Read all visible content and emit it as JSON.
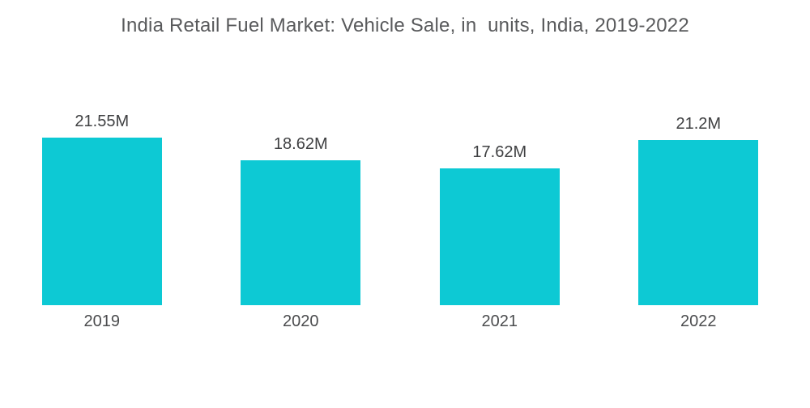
{
  "page": {
    "background_color": "#ffffff"
  },
  "chart_data": {
    "type": "bar",
    "title": "India Retail Fuel Market: Vehicle Sale, in  units, India, 2019-2022",
    "categories": [
      "2019",
      "2020",
      "2021",
      "2022"
    ],
    "values": [
      21.55,
      18.62,
      17.62,
      21.2
    ],
    "value_labels": [
      "21.55M",
      "18.62M",
      "17.62M",
      "21.2M"
    ],
    "unit": "M units",
    "xlabel": "",
    "ylabel": "",
    "ylim": [
      0,
      21.55
    ],
    "grid": false,
    "legend_position": "none",
    "bar_color": "#0DC9D4",
    "title_color": "#595a5c",
    "value_label_color": "#3f4042",
    "axis_label_color": "#4b4c4e"
  }
}
